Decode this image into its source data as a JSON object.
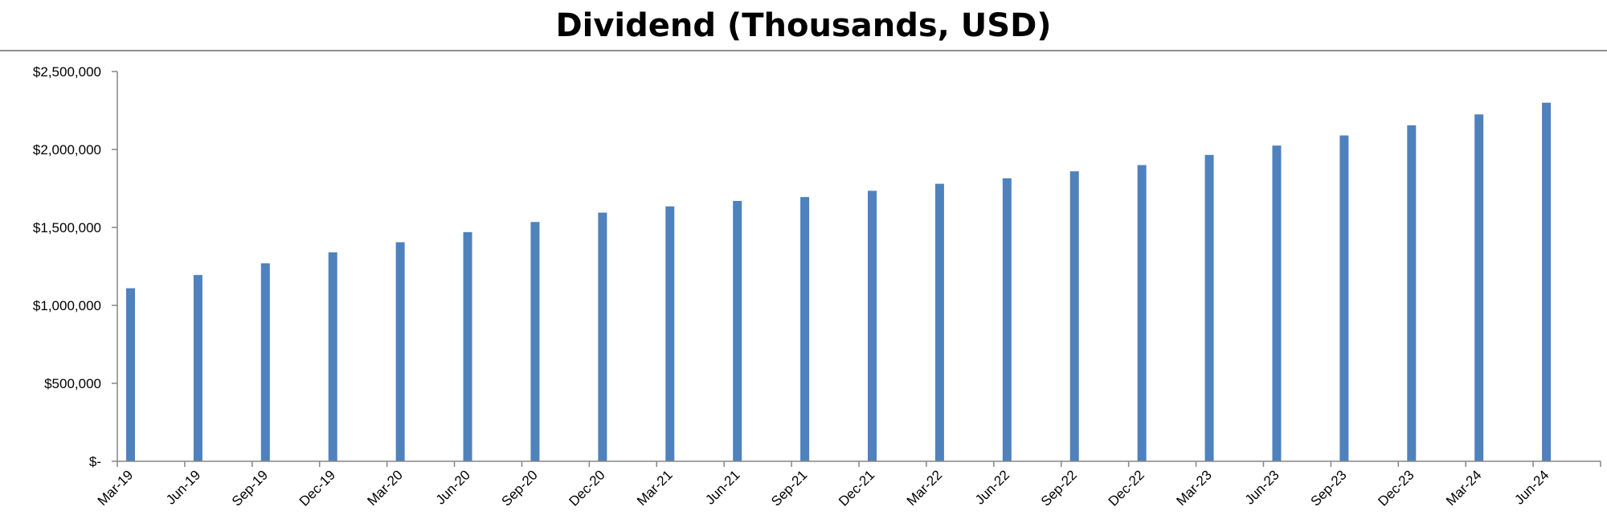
{
  "chart_data": {
    "type": "bar",
    "title": "Dividend (Thousands, USD)",
    "xlabel": "",
    "ylabel": "",
    "categories": [
      "Mar-19",
      "Jun-19",
      "Sep-19",
      "Dec-19",
      "Mar-20",
      "Jun-20",
      "Sep-20",
      "Dec-20",
      "Mar-21",
      "Jun-21",
      "Sep-21",
      "Dec-21",
      "Mar-22",
      "Jun-22",
      "Sep-22",
      "Dec-22",
      "Mar-23",
      "Jun-23",
      "Sep-23",
      "Dec-23",
      "Mar-24",
      "Jun-24"
    ],
    "values": [
      1110000,
      1195000,
      1270000,
      1340000,
      1405000,
      1470000,
      1535000,
      1595000,
      1635000,
      1670000,
      1695000,
      1735000,
      1780000,
      1815000,
      1860000,
      1900000,
      1965000,
      2025000,
      2090000,
      2155000,
      2225000,
      2300000
    ],
    "ylim": [
      0,
      2500000
    ],
    "yticks": [
      0,
      500000,
      1000000,
      1500000,
      2000000,
      2500000
    ],
    "ytick_labels": [
      "$-",
      "$500,000",
      "$1,000,000",
      "$1,500,000",
      "$2,000,000",
      "$2,500,000"
    ],
    "grid": false,
    "legend": "none",
    "colors": {
      "bar": "#4f81bd",
      "axis": "#868686"
    }
  }
}
